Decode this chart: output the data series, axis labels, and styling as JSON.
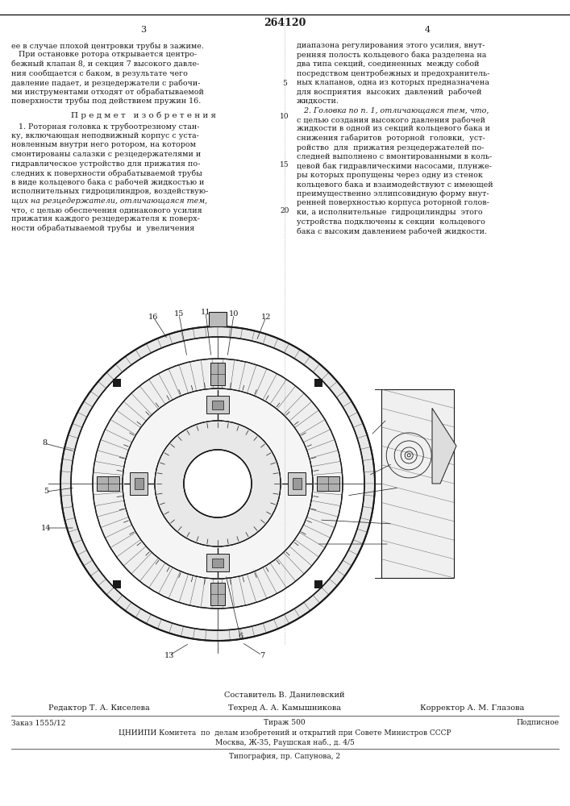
{
  "patent_number": "264120",
  "page_left": "3",
  "page_right": "4",
  "background_color": "#ffffff",
  "text_color": "#1a1a1a",
  "col1_lines": [
    "ее в случае плохой центровки трубы в зажиме.",
    "   При остановке ротора открывается центро-",
    "бежный клапан 8, и секция 7 высокого давле-",
    "ния сообщается с баком, в результате чего",
    "давление падает, и резцедержатели с рабочи-",
    "ми инструментами отходят от обрабатываемой",
    "поверхности трубы под действием пружин 16."
  ],
  "predmet_header": "П р е д м е т   и з о б р е т е н и я",
  "col1_predmet": [
    "   1. Роторная головка к трубоотрезному стан-",
    "ку, включающая неподвижный корпус с уста-",
    "новленным внутри него ротором, на котором",
    "смонтированы салазки с резцедержателями и",
    "гидравлическое устройство для прижатия по-",
    "следних к поверхности обрабатываемой трубы",
    "в виде кольцевого бака с рабочей жидкостью и",
    "исполнительных гидроцилиндров, воздействую-",
    "щих на резцедержатели, отличающаяся тем,",
    "что, с целью обеспечения одинакового усилия",
    "прижатия каждого резцедержателя к поверх-",
    "ности обрабатываемой трубы  и  увеличения"
  ],
  "col1_italic_line": "щих на резцедержатели, отличающаяся тем,",
  "col2_lines": [
    "диапазона регулирования этого усилия, внут-",
    "ренняя полость кольцевого бака разделена на",
    "два типа секций, соединенных  между собой",
    "посредством центробежных и предохранитель-",
    "ных клапанов, одна из которых предназначена",
    "для восприятия  высоких  давлений  рабочей",
    "жидкости.",
    "   2. Головка по п. 1, отличающаяся тем, что,",
    "с целью создания высокого давления рабочей",
    "жидкости в одной из секций кольцевого бака и",
    "снижения габаритов  роторной  головки,  уст-",
    "ройство  для  прижатия резцедержателей по-",
    "следней выполнено с вмонтированными в коль-",
    "цевой бак гидравлическими насосами, плунже-",
    "ры которых пропущены через одну из стенок",
    "кольцевого бака и взаимодействуют с имеющей",
    "преимущественно эллипсовидную форму внут-",
    "ренней поверхностью корпуса роторной голов-",
    "ки, а исполнительные  гидроцилиндры  этого",
    "устройства подключены к секции  кольцевого",
    "бака с высоким давлением рабочей жидкости."
  ],
  "col2_italic_line": "   2. Головка по п. 1, отличающаяся тем, что,",
  "lineno_5": "5",
  "lineno_10": "10",
  "lineno_15": "15",
  "lineno_20": "20",
  "footer_sestavitel": "Составитель В. Данилевский",
  "footer_editor": "Редактор Т. А. Киселева",
  "footer_tehred": "Техред А. А. Камышникова",
  "footer_korrektor": "Корректор А. М. Глазова",
  "footer_zakaz": "Заказ 1555/12",
  "footer_tirazh": "Тираж 500",
  "footer_podpisnoe": "Подписное",
  "footer_cniipи": "ЦНИИПИ Комитета  по  делам изобретений и открытий при Совете Министров СССР",
  "footer_moskva": "Москва, Ж-35, Раушская наб., д. 4/5",
  "footer_tipografia": "Типография, пр. Сапунова, 2"
}
